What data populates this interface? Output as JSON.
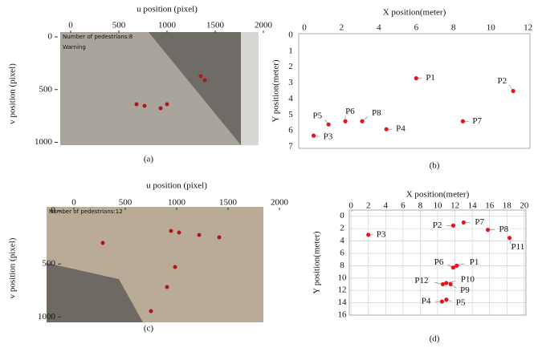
{
  "chart_data": [
    {
      "type": "image",
      "caption": "(a)",
      "x_label": "u position (pixel)",
      "y_label": "v position (pixel)",
      "xlim": [
        0,
        2000
      ],
      "xticks": [
        0,
        500,
        1000,
        1500,
        2000
      ],
      "ylim": [
        0,
        1080
      ],
      "yticks": [
        0,
        500,
        1000
      ],
      "overlay_texts": [
        {
          "text": "Number of pedestrians:8",
          "color": "#ffffff"
        },
        {
          "text": "Warning",
          "color": "#ff2020"
        }
      ]
    },
    {
      "type": "scatter",
      "caption": "(b)",
      "x_label": "X position(meter)",
      "y_label": "Y position(meter)",
      "xlim": [
        -0.3,
        12.1
      ],
      "xticks": [
        0,
        2,
        4,
        6,
        8,
        10,
        12
      ],
      "ylim": [
        -0.1,
        7.1
      ],
      "yticks": [
        0,
        1,
        2,
        3,
        4,
        5,
        6,
        7
      ],
      "grid": false,
      "series": [
        {
          "color": "#e8141c",
          "labels": [
            "P1",
            "P2",
            "P3",
            "P4",
            "P5",
            "P6",
            "P7",
            "P8"
          ],
          "x": [
            6.0,
            11.2,
            0.5,
            4.4,
            1.3,
            2.2,
            8.5,
            3.1
          ],
          "values": [
            2.7,
            3.5,
            6.3,
            5.9,
            5.6,
            5.4,
            5.4,
            5.4
          ]
        }
      ]
    },
    {
      "type": "image",
      "caption": "(c)",
      "x_label": "u position (pixel)",
      "y_label": "v position (pixel)",
      "xlim": [
        0,
        2000
      ],
      "xticks": [
        0,
        500,
        1000,
        1500,
        2000
      ],
      "ylim": [
        0,
        1080
      ],
      "yticks": [
        0,
        500,
        1000
      ],
      "overlay_texts": [
        {
          "text": "Number of pedestrians:12",
          "color": "#ffffff"
        }
      ]
    },
    {
      "type": "scatter",
      "caption": "(d)",
      "x_label": "X position(meter)",
      "y_label": "Y position(meter)",
      "xlim": [
        -0.2,
        20.2
      ],
      "xticks": [
        0,
        2,
        4,
        6,
        8,
        10,
        12,
        14,
        16,
        18,
        20
      ],
      "ylim": [
        -1,
        16
      ],
      "yticks": [
        0,
        2,
        4,
        6,
        8,
        10,
        12,
        14,
        16
      ],
      "grid": true,
      "series": [
        {
          "color": "#e8141c",
          "labels": [
            "P1",
            "P2",
            "P3",
            "P4",
            "P5",
            "P6",
            "P7",
            "P8",
            "P9",
            "P10",
            "P11",
            "P12"
          ],
          "x": [
            12.2,
            11.8,
            2.0,
            10.5,
            11.0,
            11.8,
            13.0,
            15.8,
            11.5,
            11.0,
            18.3,
            10.6
          ],
          "values": [
            8.0,
            1.5,
            3.0,
            13.8,
            13.5,
            8.3,
            1.0,
            2.2,
            11.0,
            10.8,
            3.5,
            11.0
          ]
        }
      ]
    }
  ]
}
